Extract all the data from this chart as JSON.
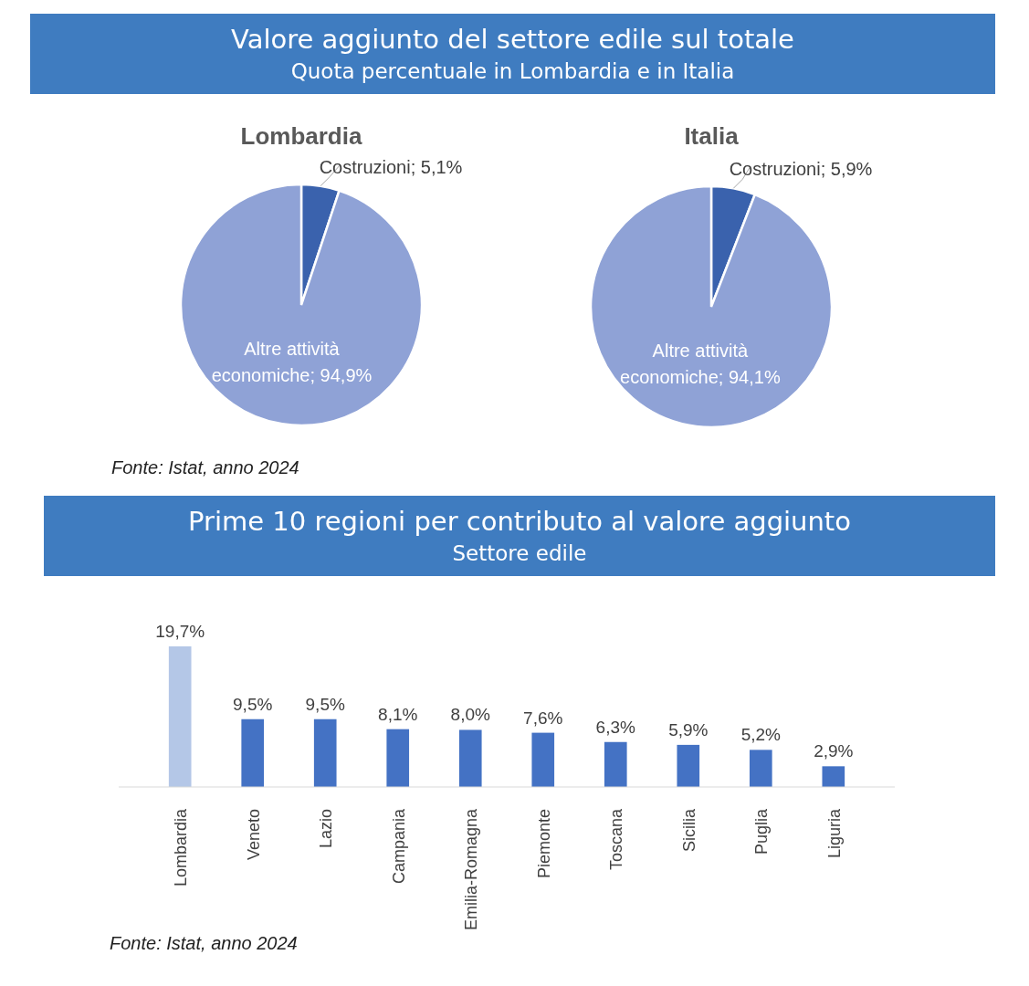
{
  "chart_data": [
    {
      "type": "other",
      "title": "Valore aggiunto del settore edile sul totale",
      "subtitle": "Quota percentuale in Lombardia e in Italia",
      "annotations": [
        "Fonte: Istat, anno 2024"
      ]
    },
    {
      "type": "pie",
      "title": "Lombardia",
      "categories": [
        "Costruzioni",
        "Altre attività economiche"
      ],
      "values": [
        5.1,
        94.9
      ],
      "colors": [
        "#3a62ad",
        "#8fa2d6"
      ],
      "value_labels": [
        "5,1%",
        "94,9%"
      ]
    },
    {
      "type": "pie",
      "title": "Italia",
      "categories": [
        "Costruzioni",
        "Altre attività economiche"
      ],
      "values": [
        5.9,
        94.1
      ],
      "colors": [
        "#3a62ad",
        "#8fa2d6"
      ],
      "value_labels": [
        "5,9%",
        "94,1%"
      ]
    },
    {
      "type": "bar",
      "title": "Prime 10 regioni per contributo al valore aggiunto",
      "subtitle": "Settore edile",
      "categories": [
        "Lombardia",
        "Veneto",
        "Lazio",
        "Campania",
        "Emilia-Romagna",
        "Piemonte",
        "Toscana",
        "Sicilia",
        "Puglia",
        "Liguria"
      ],
      "values": [
        19.7,
        9.5,
        9.5,
        8.1,
        8.0,
        7.6,
        6.3,
        5.9,
        5.2,
        2.9
      ],
      "colors": [
        "#b4c7e7",
        "#4472c4",
        "#4472c4",
        "#4472c4",
        "#4472c4",
        "#4472c4",
        "#4472c4",
        "#4472c4",
        "#4472c4",
        "#4472c4"
      ],
      "value_labels": [
        "19,7%",
        "9,5%",
        "9,5%",
        "8,1%",
        "8,0%",
        "7,6%",
        "6,3%",
        "5,9%",
        "5,2%",
        "2,9%"
      ],
      "annotations": [
        "Fonte: Istat, anno 2024"
      ]
    }
  ]
}
